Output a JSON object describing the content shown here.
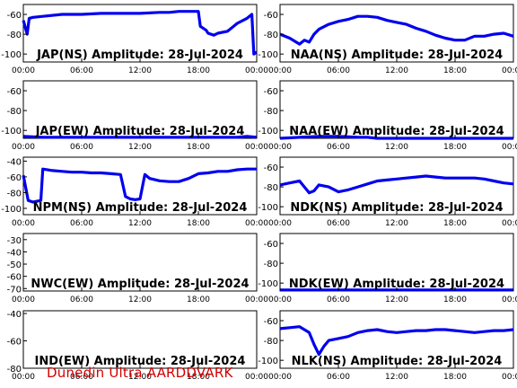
{
  "footer": "Dunedin Ultra AARDDVARK",
  "chart_data": [
    {
      "type": "line",
      "title": "JAP(NS) Amplitude: 28-Jul-2024",
      "yticks": [
        -60,
        -80,
        -100
      ],
      "ylim": [
        -108,
        -50
      ],
      "xticks": [
        "00:00",
        "06:00",
        "12:00",
        "18:00",
        "00:00"
      ],
      "xlim": [
        0,
        24
      ],
      "series": [
        {
          "x": [
            0,
            0.4,
            0.6,
            1,
            2,
            4,
            6,
            8,
            10,
            12,
            14,
            15,
            16,
            17,
            18,
            18.2,
            18.8,
            19,
            19.6,
            20,
            21,
            22,
            23,
            23.5,
            23.7,
            24
          ],
          "y": [
            -66,
            -80,
            -64,
            -63,
            -62,
            -60,
            -60,
            -59,
            -59,
            -59,
            -58,
            -58,
            -57,
            -57,
            -57,
            -72,
            -76,
            -79,
            -81,
            -79,
            -77,
            -69,
            -64,
            -60,
            -100,
            -98
          ]
        }
      ]
    },
    {
      "type": "line",
      "title": "NAA(NS) Amplitude: 28-Jul-2024",
      "yticks": [
        -60,
        -80,
        -100
      ],
      "ylim": [
        -108,
        -50
      ],
      "xticks": [
        "00:00",
        "06:00",
        "12:00",
        "18:00",
        "00:00"
      ],
      "xlim": [
        0,
        24
      ],
      "series": [
        {
          "x": [
            0,
            1,
            2,
            2.5,
            3,
            3.5,
            4,
            5,
            6,
            7,
            8,
            9,
            10,
            11,
            12,
            13,
            14,
            15,
            16,
            17,
            18,
            19,
            20,
            21,
            22,
            23,
            24
          ],
          "y": [
            -80,
            -84,
            -90,
            -86,
            -88,
            -80,
            -75,
            -70,
            -67,
            -65,
            -62,
            -62,
            -63,
            -66,
            -68,
            -70,
            -74,
            -77,
            -81,
            -84,
            -86,
            -86,
            -82,
            -82,
            -80,
            -79,
            -82
          ]
        }
      ]
    },
    {
      "type": "line",
      "title": "JAP(EW) Amplitude: 28-Jul-2024",
      "yticks": [
        -60,
        -80,
        -100
      ],
      "ylim": [
        -108,
        -50
      ],
      "xticks": [
        "00:00",
        "06:00",
        "12:00",
        "18:00",
        "00:00"
      ],
      "xlim": [
        0,
        24
      ],
      "series": [
        {
          "x": [
            0,
            2,
            4,
            6,
            8,
            10,
            12,
            14,
            16,
            17,
            18,
            19,
            20,
            21,
            22,
            23,
            24
          ],
          "y": [
            -106,
            -107,
            -107,
            -107,
            -107,
            -107,
            -107,
            -107,
            -107,
            -107,
            -107,
            -107,
            -107,
            -107,
            -107,
            -106,
            -107
          ]
        }
      ]
    },
    {
      "type": "line",
      "title": "NAA(EW) Amplitude: 28-Jul-2024",
      "yticks": [
        -60,
        -80,
        -100
      ],
      "ylim": [
        -108,
        -50
      ],
      "xticks": [
        "00:00",
        "06:00",
        "12:00",
        "18:00",
        "00:00"
      ],
      "xlim": [
        0,
        24
      ],
      "series": [
        {
          "x": [
            0,
            2,
            4,
            6,
            8,
            9,
            10,
            12,
            14,
            16,
            18,
            20,
            22,
            24
          ],
          "y": [
            -108,
            -107,
            -106,
            -106,
            -107,
            -107,
            -108,
            -108,
            -108,
            -108,
            -108,
            -108,
            -108,
            -108
          ]
        }
      ]
    },
    {
      "type": "line",
      "title": "NPM(NS) Amplitude: 28-Jul-2024",
      "yticks": [
        -40,
        -60,
        -80,
        -100
      ],
      "ylim": [
        -108,
        -35
      ],
      "xticks": [
        "00:00",
        "06:00",
        "12:00",
        "18:00",
        "00:00"
      ],
      "xlim": [
        0,
        24
      ],
      "series": [
        {
          "x": [
            0,
            0.5,
            1,
            1.8,
            2,
            3,
            4,
            5,
            6,
            7,
            8,
            9,
            10,
            10.5,
            11,
            11.5,
            12,
            12.5,
            13,
            14,
            15,
            16,
            17,
            18,
            19,
            20,
            21,
            22,
            23,
            24
          ],
          "y": [
            -58,
            -90,
            -92,
            -90,
            -50,
            -52,
            -53,
            -54,
            -54,
            -55,
            -55,
            -56,
            -57,
            -85,
            -88,
            -89,
            -88,
            -57,
            -62,
            -65,
            -66,
            -66,
            -62,
            -56,
            -55,
            -53,
            -53,
            -51,
            -50,
            -50
          ]
        }
      ]
    },
    {
      "type": "line",
      "title": "NDK(NS) Amplitude: 28-Jul-2024",
      "yticks": [
        -60,
        -80,
        -100
      ],
      "ylim": [
        -108,
        -50
      ],
      "xticks": [
        "00:00",
        "06:00",
        "12:00",
        "18:00",
        "00:00"
      ],
      "xlim": [
        0,
        24
      ],
      "series": [
        {
          "x": [
            0,
            1,
            2,
            2.5,
            3,
            3.5,
            4,
            5,
            6,
            7,
            8,
            9,
            10,
            11,
            12,
            13,
            14,
            15,
            16,
            17,
            18,
            19,
            20,
            21,
            22,
            23,
            24
          ],
          "y": [
            -78,
            -76,
            -74,
            -80,
            -86,
            -84,
            -78,
            -80,
            -85,
            -83,
            -80,
            -77,
            -74,
            -73,
            -72,
            -71,
            -70,
            -69,
            -70,
            -71,
            -71,
            -71,
            -71,
            -72,
            -74,
            -76,
            -77
          ]
        }
      ]
    },
    {
      "type": "line",
      "title": "NWC(EW) Amplitude: 28-Jul-2024",
      "yticks": [
        -30,
        -40,
        -50,
        -60,
        -70
      ],
      "ylim": [
        -72,
        -25
      ],
      "xticks": [
        "00:00",
        "06:00",
        "12:00",
        "18:00",
        "00:00"
      ],
      "xlim": [
        0,
        24
      ],
      "series": []
    },
    {
      "type": "line",
      "title": "NDK(EW) Amplitude: 28-Jul-2024",
      "yticks": [
        -60,
        -80,
        -100
      ],
      "ylim": [
        -108,
        -50
      ],
      "xticks": [
        "00:00",
        "06:00",
        "12:00",
        "18:00",
        "00:00"
      ],
      "xlim": [
        0,
        24
      ],
      "series": [
        {
          "x": [
            0,
            2,
            4,
            6,
            8,
            10,
            12,
            14,
            16,
            18,
            20,
            22,
            24
          ],
          "y": [
            -107,
            -107,
            -107,
            -107,
            -107,
            -107,
            -107,
            -107,
            -107,
            -107,
            -107,
            -107,
            -107
          ]
        }
      ]
    },
    {
      "type": "line",
      "title": "IND(EW) Amplitude: 28-Jul-2024",
      "yticks": [
        -40,
        -60,
        -80
      ],
      "ylim": [
        -80,
        -38
      ],
      "xticks": [
        "00:00",
        "06:00",
        "12:00",
        "18:00",
        "00:00"
      ],
      "xlim": [
        0,
        24
      ],
      "series": []
    },
    {
      "type": "line",
      "title": "NLK(NS) Amplitude: 28-Jul-2024",
      "yticks": [
        -60,
        -80,
        -100
      ],
      "ylim": [
        -108,
        -50
      ],
      "xticks": [
        "00:00",
        "06:00",
        "12:00",
        "18:00",
        "00:00"
      ],
      "xlim": [
        0,
        24
      ],
      "series": [
        {
          "x": [
            0,
            1,
            2,
            3,
            3.5,
            4,
            4.5,
            5,
            6,
            7,
            8,
            9,
            10,
            11,
            12,
            13,
            14,
            15,
            16,
            17,
            18,
            19,
            20,
            21,
            22,
            23,
            24
          ],
          "y": [
            -68,
            -67,
            -66,
            -72,
            -84,
            -94,
            -86,
            -80,
            -78,
            -76,
            -72,
            -70,
            -69,
            -71,
            -72,
            -71,
            -70,
            -70,
            -69,
            -69,
            -70,
            -71,
            -72,
            -71,
            -70,
            -70,
            -69
          ]
        }
      ]
    }
  ]
}
